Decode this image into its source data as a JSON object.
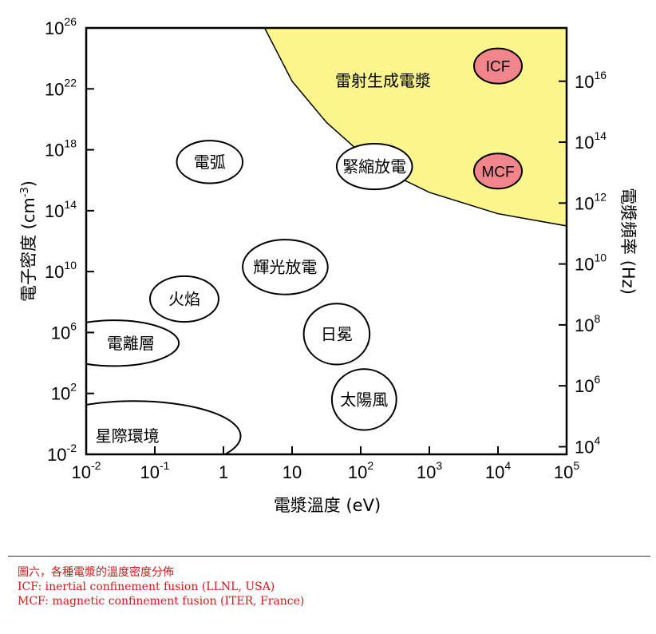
{
  "chart_data": {
    "type": "scatter",
    "x_axis": {
      "label": "電漿溫度 (eV)",
      "scale": "log",
      "range_exp": [
        -2,
        5
      ],
      "ticks": [
        {
          "base": "10",
          "exp": "-2",
          "pos": -2
        },
        {
          "base": "10",
          "exp": "-1",
          "pos": -1
        },
        {
          "base": "1",
          "exp": "",
          "pos": 0
        },
        {
          "base": "10",
          "exp": "",
          "pos": 1
        },
        {
          "base": "10",
          "exp": "2",
          "pos": 2
        },
        {
          "base": "10",
          "exp": "3",
          "pos": 3
        },
        {
          "base": "10",
          "exp": "4",
          "pos": 4
        },
        {
          "base": "10",
          "exp": "5",
          "pos": 5
        }
      ]
    },
    "y_axis_left": {
      "label": "電子密度 (cm",
      "label_exp": "-3",
      "label_end": ")",
      "scale": "log",
      "range_exp": [
        -2,
        26
      ],
      "ticks": [
        {
          "base": "10",
          "exp": "-2",
          "pos": -2
        },
        {
          "base": "10",
          "exp": "2",
          "pos": 2
        },
        {
          "base": "10",
          "exp": "6",
          "pos": 6
        },
        {
          "base": "10",
          "exp": "10",
          "pos": 10
        },
        {
          "base": "10",
          "exp": "14",
          "pos": 14
        },
        {
          "base": "10",
          "exp": "18",
          "pos": 18
        },
        {
          "base": "10",
          "exp": "22",
          "pos": 22
        },
        {
          "base": "10",
          "exp": "26",
          "pos": 26
        }
      ]
    },
    "y_axis_right": {
      "label": "電漿頻率 (Hz)",
      "label_main": "電漿頻率",
      "label_unit": "(Hz)",
      "ticks": [
        {
          "base": "10",
          "exp": "4",
          "pos": -1.5
        },
        {
          "base": "10",
          "exp": "6",
          "pos": 2.5
        },
        {
          "base": "10",
          "exp": "8",
          "pos": 6.5
        },
        {
          "base": "10",
          "exp": "10",
          "pos": 10.5
        },
        {
          "base": "10",
          "exp": "12",
          "pos": 14.5
        },
        {
          "base": "10",
          "exp": "14",
          "pos": 18.5
        },
        {
          "base": "10",
          "exp": "16",
          "pos": 22.5
        }
      ]
    },
    "laser_region": {
      "label": "雷射生成電漿",
      "color": "#fcf68c",
      "boundary": [
        [
          0.6,
          26
        ],
        [
          1.0,
          22.5
        ],
        [
          1.5,
          19.8
        ],
        [
          2.0,
          17.8
        ],
        [
          2.5,
          16.3
        ],
        [
          3.0,
          15.2
        ],
        [
          4.0,
          13.8
        ],
        [
          5.0,
          13.0
        ]
      ]
    },
    "regions": [
      {
        "name": "電弧",
        "cx": -0.2,
        "cy": 17.2,
        "rx": 0.48,
        "ry": 1.4
      },
      {
        "name": "緊縮放電",
        "cx": 2.2,
        "cy": 16.9,
        "rx": 0.55,
        "ry": 1.5
      },
      {
        "name": "輝光放電",
        "cx": 0.9,
        "cy": 10.3,
        "rx": 0.62,
        "ry": 1.8
      },
      {
        "name": "火焰",
        "cx": -0.57,
        "cy": 8.2,
        "rx": 0.5,
        "ry": 1.5
      },
      {
        "name": "日冕",
        "cx": 1.65,
        "cy": 5.9,
        "rx": 0.48,
        "ry": 2.0
      },
      {
        "name": "太陽風",
        "cx": 2.05,
        "cy": 1.6,
        "rx": 0.47,
        "ry": 2.0
      },
      {
        "name": "電離層",
        "cx": -1.6,
        "cy": 5.3,
        "rx": 0.95,
        "ry": 1.5
      },
      {
        "name": "星際環境",
        "cx": -1.3,
        "cy": -0.8,
        "rx": 1.55,
        "ry": 2.3
      }
    ],
    "experiments": [
      {
        "name": "ICF",
        "x": 4.0,
        "y": 23.5,
        "color": "#f2858c"
      },
      {
        "name": "MCF",
        "x": 4.0,
        "y": 16.6,
        "color": "#f2858c"
      }
    ]
  },
  "caption": {
    "title": "圖六，各種電漿的溫度密度分佈",
    "line_icf": "ICF: inertial confinement fusion (LLNL, USA)",
    "line_mcf": "MCF: magnetic confinement fusion (ITER, France)"
  }
}
